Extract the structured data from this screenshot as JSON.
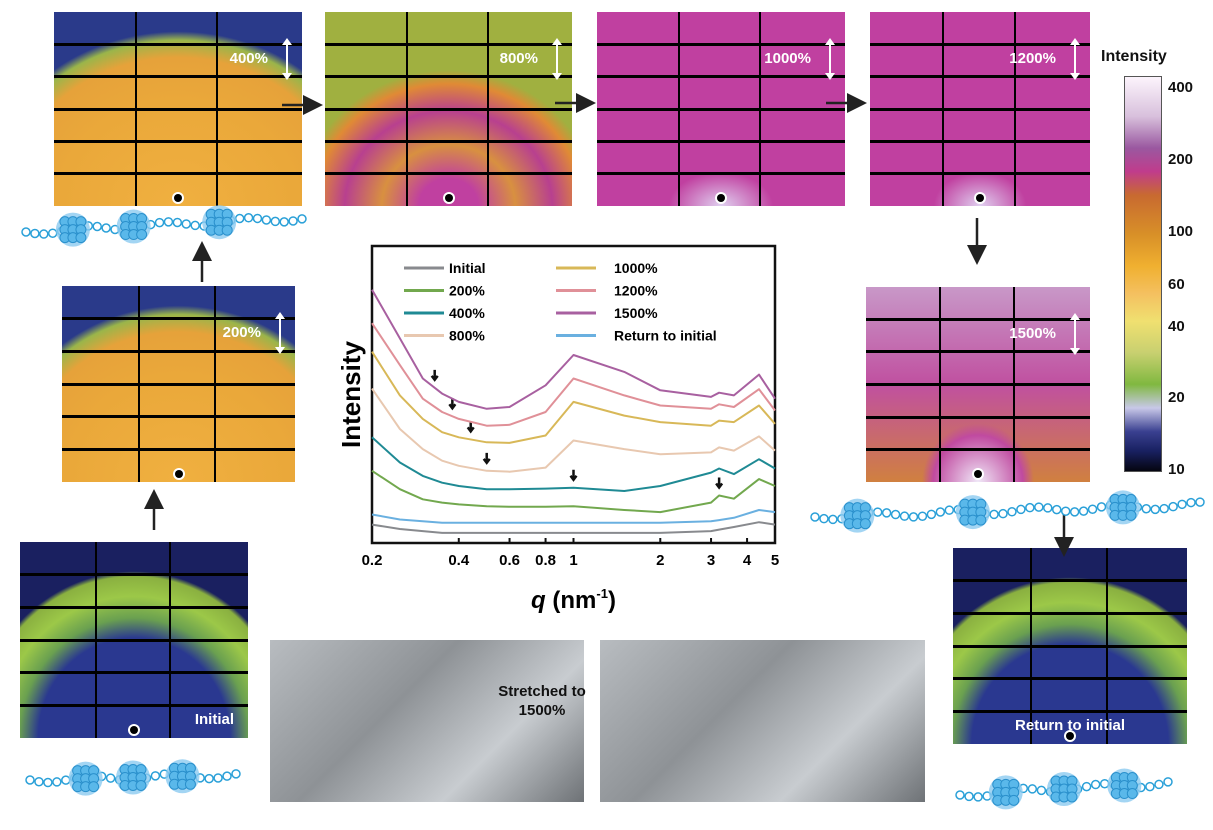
{
  "panels": {
    "p200": "200%",
    "p400": "400%",
    "p800": "800%",
    "p1000": "1000%",
    "p1200": "1200%",
    "p1500": "1500%",
    "initial": "Initial",
    "return": "Return to initial"
  },
  "stretch_label_1": "Stretched to",
  "stretch_label_2": "1500%",
  "colorbar": {
    "title": "Intensity",
    "ticks": [
      "400",
      "200",
      "100",
      "60",
      "40",
      "20",
      "10"
    ],
    "scale": "log",
    "min": 10,
    "max": 450
  },
  "chart_data": {
    "type": "line",
    "xlabel_var": "q",
    "xlabel_unit": "(nm",
    "xlabel_exp": "-1",
    "xlabel_close": ")",
    "ylabel": "Intensity",
    "xscale": "log",
    "xlim": [
      0.2,
      5
    ],
    "ylim": [
      0,
      100
    ],
    "xticks": [
      "0.2",
      "0.4",
      "0.6",
      "0.8",
      "1",
      "2",
      "3",
      "4",
      "5"
    ],
    "xtick_values": [
      0.2,
      0.4,
      0.6,
      0.8,
      1,
      2,
      3,
      4,
      5
    ],
    "legend": "top-left",
    "x": [
      0.2,
      0.25,
      0.3,
      0.35,
      0.4,
      0.5,
      0.6,
      0.8,
      1.0,
      1.5,
      2,
      3,
      3.2,
      3.6,
      4.4,
      5
    ],
    "series": [
      {
        "name": "Initial",
        "color": "#888a8e",
        "values": [
          6.2,
          4.7,
          4.0,
          3.4,
          3.4,
          3.4,
          3.4,
          3.4,
          3.4,
          3.4,
          3.4,
          4.0,
          4.5,
          5.4,
          7.0,
          6.2
        ]
      },
      {
        "name": "200%",
        "color": "#72a84e",
        "values": [
          24.3,
          18.1,
          14.7,
          13.6,
          13.0,
          12.4,
          12.2,
          12.2,
          12.4,
          11.1,
          10.4,
          13.6,
          16.0,
          14.9,
          21.5,
          19.2
        ],
        "arrow_q": 3.2
      },
      {
        "name": "400%",
        "color": "#1f8a94",
        "values": [
          35.6,
          27.1,
          22.6,
          20.3,
          19.2,
          18.1,
          18.1,
          18.3,
          18.6,
          17.5,
          19.2,
          23.7,
          25.1,
          23.2,
          28.2,
          25.1
        ],
        "arrow_q": 1.0
      },
      {
        "name": "800%",
        "color": "#e8c8b0",
        "values": [
          52.0,
          38.4,
          31.6,
          27.7,
          26.0,
          24.3,
          24.0,
          25.4,
          34.5,
          31.6,
          29.9,
          30.5,
          32.2,
          31.1,
          35.9,
          31.1
        ],
        "arrow_q": 0.5
      },
      {
        "name": "1000%",
        "color": "#d8b858",
        "values": [
          64.4,
          49.7,
          41.8,
          37.3,
          35.6,
          33.9,
          33.7,
          36.2,
          47.5,
          42.9,
          40.7,
          39.5,
          41.2,
          40.7,
          46.3,
          40.1
        ],
        "arrow_q": 0.44
      },
      {
        "name": "1200%",
        "color": "#e09098",
        "values": [
          74.0,
          59.9,
          48.6,
          44.1,
          41.8,
          39.5,
          39.8,
          44.1,
          55.4,
          49.7,
          46.3,
          45.2,
          46.7,
          45.8,
          51.8,
          44.6
        ],
        "arrow_q": 0.38
      },
      {
        "name": "1500%",
        "color": "#a860a0",
        "values": [
          85.3,
          68.9,
          55.4,
          50.3,
          47.5,
          45.2,
          45.8,
          53.1,
          63.3,
          57.6,
          51.4,
          49.2,
          50.6,
          49.7,
          56.7,
          48.6
        ],
        "arrow_q": 0.33
      },
      {
        "name": "Return to initial",
        "color": "#6ab0e0",
        "values": [
          9.6,
          7.9,
          7.3,
          6.8,
          6.8,
          6.8,
          6.8,
          6.8,
          6.8,
          6.8,
          6.8,
          7.3,
          7.7,
          8.5,
          11.1,
          10.4
        ]
      }
    ]
  }
}
